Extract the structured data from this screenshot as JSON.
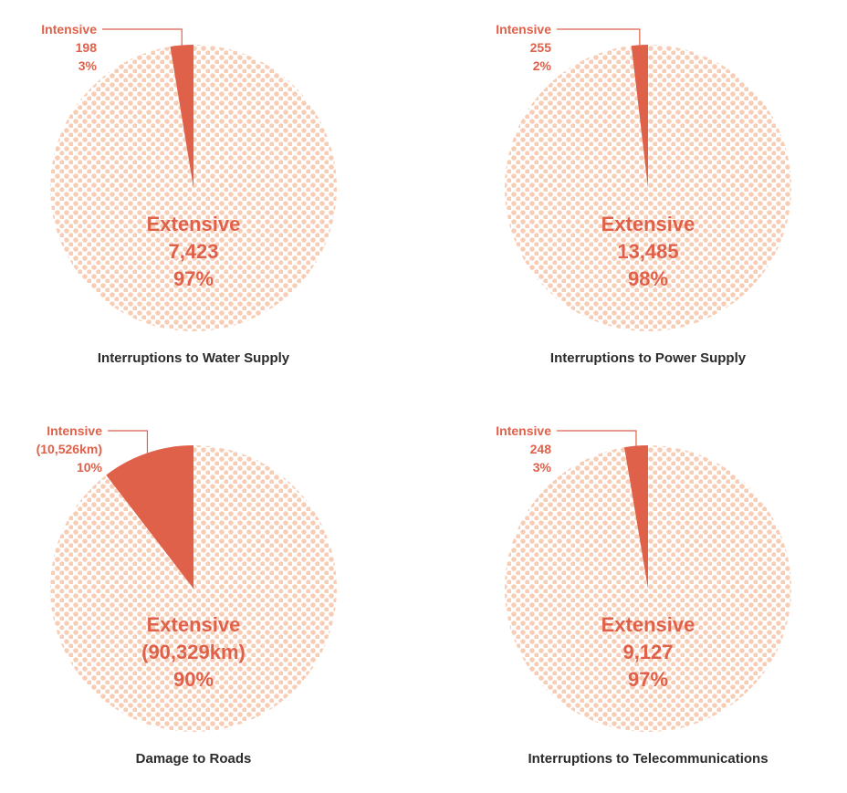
{
  "colors": {
    "intensive": "#e0614a",
    "extensive_dots": "#f8cdb6",
    "caption": "#2b2b2b"
  },
  "chart_data": [
    {
      "type": "pie",
      "title": "Interruptions to Water Supply",
      "slices": [
        {
          "name": "Intensive",
          "value": 198,
          "percent": 3,
          "value_label": "198",
          "percent_label": "3%"
        },
        {
          "name": "Extensive",
          "value": 7423,
          "percent": 97,
          "value_label": "7,423",
          "percent_label": "97%"
        }
      ]
    },
    {
      "type": "pie",
      "title": "Interruptions to Power Supply",
      "slices": [
        {
          "name": "Intensive",
          "value": 255,
          "percent": 2,
          "value_label": "255",
          "percent_label": "2%"
        },
        {
          "name": "Extensive",
          "value": 13485,
          "percent": 98,
          "value_label": "13,485",
          "percent_label": "98%"
        }
      ]
    },
    {
      "type": "pie",
      "title": "Damage to Roads",
      "slices": [
        {
          "name": "Intensive",
          "value": 10526,
          "percent": 10,
          "value_label": "(10,526km)",
          "percent_label": "10%"
        },
        {
          "name": "Extensive",
          "value": 90329,
          "percent": 90,
          "value_label": "(90,329km)",
          "percent_label": "90%"
        }
      ]
    },
    {
      "type": "pie",
      "title": "Interruptions to Telecommunications",
      "slices": [
        {
          "name": "Intensive",
          "value": 248,
          "percent": 3,
          "value_label": "248",
          "percent_label": "3%"
        },
        {
          "name": "Extensive",
          "value": 9127,
          "percent": 97,
          "value_label": "9,127",
          "percent_label": "97%"
        }
      ]
    }
  ]
}
